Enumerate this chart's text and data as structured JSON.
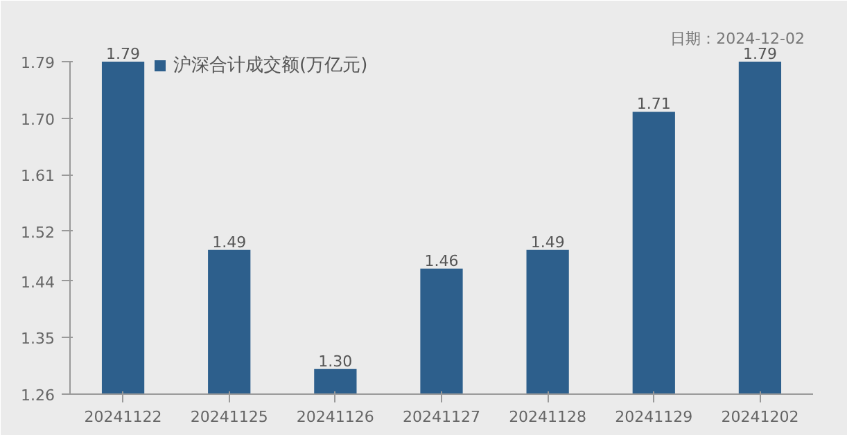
{
  "chart_data": {
    "type": "bar",
    "categories": [
      "20241122",
      "20241125",
      "20241126",
      "20241127",
      "20241128",
      "20241129",
      "20241202"
    ],
    "series": [
      {
        "name": "沪深合计成交额(万亿元)",
        "color": "#2d5f8c",
        "values": [
          1.79,
          1.49,
          1.3,
          1.46,
          1.49,
          1.71,
          1.79
        ],
        "value_labels": [
          "1.79",
          "1.49",
          "1.30",
          "1.46",
          "1.49",
          "1.71",
          "1.79"
        ]
      }
    ],
    "ylim": [
      1.26,
      1.79
    ],
    "yticks": [
      {
        "value": 1.26,
        "label": "1.26"
      },
      {
        "value": 1.35,
        "label": "1.35"
      },
      {
        "value": 1.44,
        "label": "1.44"
      },
      {
        "value": 1.52,
        "label": "1.52"
      },
      {
        "value": 1.61,
        "label": "1.61"
      },
      {
        "value": 1.7,
        "label": "1.70"
      },
      {
        "value": 1.79,
        "label": "1.79"
      }
    ],
    "grid": false,
    "legend": "top left",
    "annotations": [
      "日期：2024-12-02"
    ]
  }
}
